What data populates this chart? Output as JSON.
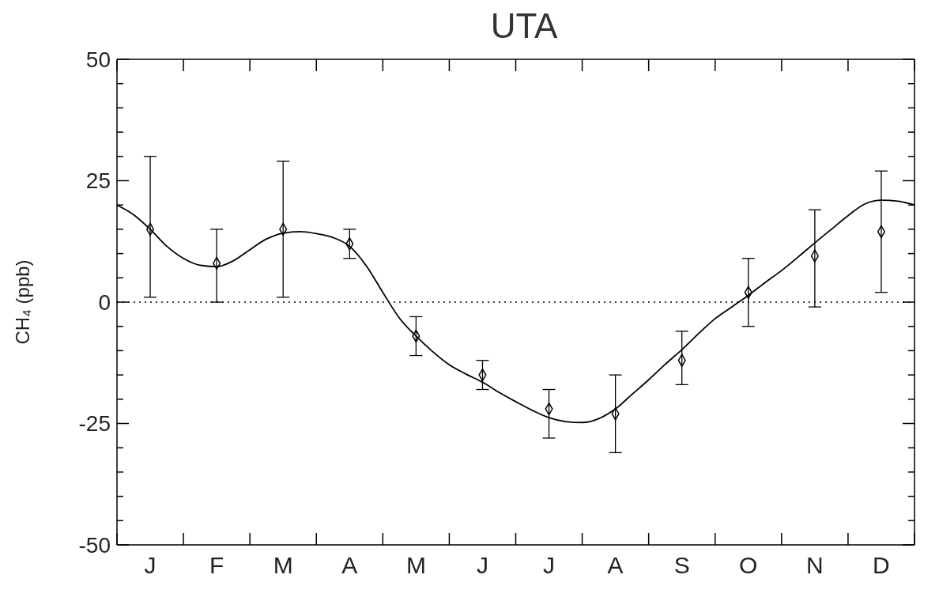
{
  "chart_data": {
    "type": "scatter",
    "title": "UTA",
    "ylabel": "CH₄ (ppb)",
    "categories": [
      null,
      null,
      "J",
      null,
      null,
      null,
      "F",
      null,
      null,
      null,
      "M",
      null,
      null,
      null,
      "A",
      null,
      null,
      null,
      "M",
      null,
      null,
      null,
      "J",
      null,
      null,
      null,
      "J",
      null,
      null,
      null,
      "A",
      null,
      null,
      null,
      "S",
      null,
      null,
      null,
      "O",
      null,
      null,
      null,
      "N",
      null,
      null,
      null,
      "D",
      null,
      null
    ],
    "ylim": [
      -50,
      50
    ],
    "yticks": [
      -50,
      {
        "value": -45,
        "label": null
      },
      {
        "value": -40,
        "label": null
      },
      {
        "value": -35,
        "label": null
      },
      {
        "value": -30,
        "label": null
      },
      -25,
      {
        "value": -20,
        "label": null
      },
      {
        "value": -15,
        "label": null
      },
      {
        "value": -10,
        "label": null
      },
      {
        "value": -5,
        "label": null
      },
      0,
      {
        "value": 5,
        "label": null
      },
      {
        "value": 10,
        "label": null
      },
      {
        "value": 15,
        "label": null
      },
      {
        "value": 20,
        "label": null
      },
      25,
      {
        "value": 30,
        "label": null
      },
      {
        "value": 35,
        "label": null
      },
      {
        "value": 40,
        "label": null
      },
      {
        "value": 45,
        "label": null
      },
      50
    ],
    "ref_lines": [
      {
        "axis": "y",
        "value": 0,
        "line_style": "dotted",
        "color": "#000000"
      }
    ],
    "series": [
      {
        "marker": "diamond",
        "color": "#000000",
        "values": [
          null,
          null,
          15,
          null,
          null,
          null,
          8,
          null,
          null,
          null,
          15,
          null,
          null,
          null,
          12,
          null,
          null,
          null,
          -7,
          null,
          null,
          null,
          -15,
          null,
          null,
          null,
          -22,
          null,
          null,
          null,
          -23,
          null,
          null,
          null,
          -12,
          null,
          null,
          null,
          2,
          null,
          null,
          null,
          9.5,
          null,
          null,
          null,
          14.5,
          null,
          null
        ],
        "errors": [
          null,
          null,
          [
            1,
            30
          ],
          null,
          null,
          null,
          [
            0,
            15
          ],
          null,
          null,
          null,
          [
            1,
            29
          ],
          null,
          null,
          null,
          [
            9,
            15
          ],
          null,
          null,
          null,
          [
            -11,
            -3
          ],
          null,
          null,
          null,
          [
            -18,
            -12
          ],
          null,
          null,
          null,
          [
            -28,
            -18
          ],
          null,
          null,
          null,
          [
            -31,
            -15
          ],
          null,
          null,
          null,
          [
            -17,
            -6
          ],
          null,
          null,
          null,
          [
            -5,
            9
          ],
          null,
          null,
          null,
          [
            -1,
            19
          ],
          null,
          null,
          null,
          [
            2,
            27
          ],
          null,
          null
        ]
      },
      {
        "type": "line",
        "color": "#000000",
        "values": [
          20,
          18,
          15,
          11.5,
          9,
          7.6,
          7.3,
          8.5,
          10.8,
          13,
          14.2,
          14.5,
          14.1,
          13.3,
          11.5,
          7.5,
          2,
          -3.3,
          -7,
          -10.2,
          -12.9,
          -14.8,
          -16.5,
          -18.6,
          -20.5,
          -22.3,
          -23.8,
          -24.6,
          -24.8,
          -24,
          -22,
          -19,
          -16,
          -12.8,
          -9.8,
          -6.5,
          -3.4,
          -1,
          1.4,
          4,
          6.5,
          9.3,
          12.2,
          15,
          17.8,
          20.2,
          21,
          20.8,
          20
        ]
      }
    ]
  }
}
